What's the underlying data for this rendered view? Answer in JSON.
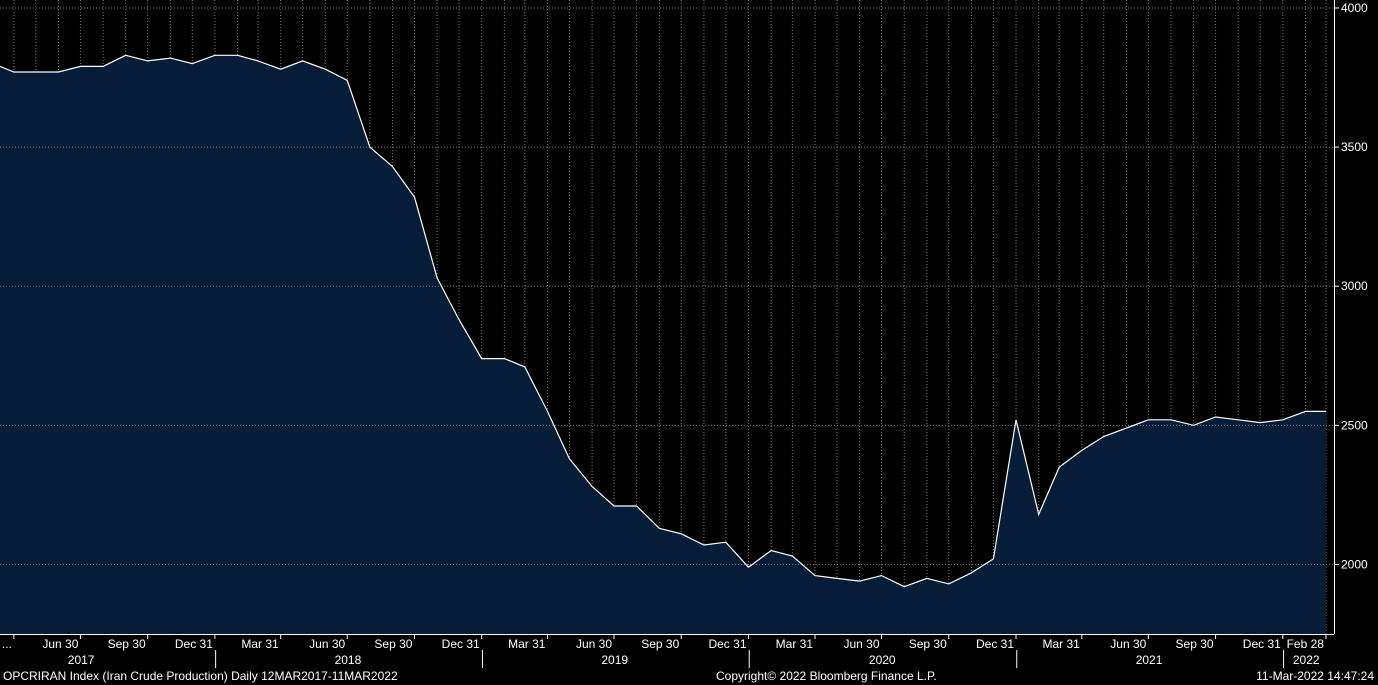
{
  "footer": {
    "left": "OPCRIRAN Index (Iran Crude Production)  Daily 12MAR2017-11MAR2022",
    "center": "Copyright© 2022 Bloomberg Finance L.P.",
    "right": "11-Mar-2022 14:47:24"
  },
  "colors": {
    "background": "#000000",
    "area_fill": "#061d3a",
    "line": "#ffffff",
    "grid": "#7a7a7a"
  },
  "chart_data": {
    "type": "area",
    "title": "",
    "xlabel": "",
    "ylabel": "",
    "ylim": [
      1750,
      4000
    ],
    "xlim": [
      "2017-03-12",
      "2022-03-11"
    ],
    "yticks": [
      2000,
      2500,
      3000,
      3500,
      4000
    ],
    "grid": true,
    "legend": "none",
    "x_tick_labels": [
      {
        "date": "2017-03-31",
        "label": "..."
      },
      {
        "date": "2017-06-30",
        "label": "Jun 30"
      },
      {
        "date": "2017-09-30",
        "label": "Sep 30"
      },
      {
        "date": "2017-12-31",
        "label": "Dec 31"
      },
      {
        "date": "2018-03-31",
        "label": "Mar 31"
      },
      {
        "date": "2018-06-30",
        "label": "Jun 30"
      },
      {
        "date": "2018-09-30",
        "label": "Sep 30"
      },
      {
        "date": "2018-12-31",
        "label": "Dec 31"
      },
      {
        "date": "2019-03-31",
        "label": "Mar 31"
      },
      {
        "date": "2019-06-30",
        "label": "Jun 30"
      },
      {
        "date": "2019-09-30",
        "label": "Sep 30"
      },
      {
        "date": "2019-12-31",
        "label": "Dec 31"
      },
      {
        "date": "2020-03-31",
        "label": "Mar 31"
      },
      {
        "date": "2020-06-30",
        "label": "Jun 30"
      },
      {
        "date": "2020-09-30",
        "label": "Sep 30"
      },
      {
        "date": "2020-12-31",
        "label": "Dec 31"
      },
      {
        "date": "2021-03-31",
        "label": "Mar 31"
      },
      {
        "date": "2021-06-30",
        "label": "Jun 30"
      },
      {
        "date": "2021-09-30",
        "label": "Sep 30"
      },
      {
        "date": "2021-12-31",
        "label": "Dec 31"
      },
      {
        "date": "2022-02-28",
        "label": "Feb 28"
      }
    ],
    "year_labels": [
      {
        "date": "2017-07-01",
        "label": "2017"
      },
      {
        "date": "2018-07-01",
        "label": "2018"
      },
      {
        "date": "2019-07-01",
        "label": "2019"
      },
      {
        "date": "2020-07-01",
        "label": "2020"
      },
      {
        "date": "2021-07-01",
        "label": "2021"
      },
      {
        "date": "2022-02-01",
        "label": "2022"
      }
    ],
    "year_boundaries": [
      "2018-01-01",
      "2019-01-01",
      "2020-01-01",
      "2021-01-01",
      "2022-01-01"
    ],
    "series": [
      {
        "x": [
          "2017-03-12",
          "2017-03-31",
          "2017-04-30",
          "2017-05-31",
          "2017-06-30",
          "2017-07-31",
          "2017-08-31",
          "2017-09-30",
          "2017-10-31",
          "2017-11-30",
          "2017-12-31",
          "2018-01-31",
          "2018-02-28",
          "2018-03-31",
          "2018-04-30",
          "2018-05-31",
          "2018-06-30",
          "2018-07-31",
          "2018-08-31",
          "2018-09-30",
          "2018-10-31",
          "2018-11-30",
          "2018-12-31",
          "2019-01-31",
          "2019-02-28",
          "2019-03-31",
          "2019-04-30",
          "2019-05-31",
          "2019-06-30",
          "2019-07-31",
          "2019-08-31",
          "2019-09-30",
          "2019-10-31",
          "2019-11-30",
          "2019-12-31",
          "2020-01-31",
          "2020-02-29",
          "2020-03-31",
          "2020-04-30",
          "2020-05-31",
          "2020-06-30",
          "2020-07-31",
          "2020-08-31",
          "2020-09-30",
          "2020-10-31",
          "2020-11-30",
          "2020-12-31",
          "2021-01-31",
          "2021-02-28",
          "2021-03-31",
          "2021-04-30",
          "2021-05-31",
          "2021-06-30",
          "2021-07-31",
          "2021-08-31",
          "2021-09-30",
          "2021-10-31",
          "2021-11-30",
          "2021-12-31",
          "2022-01-31",
          "2022-02-28"
        ],
        "values": [
          3790,
          3770,
          3770,
          3770,
          3790,
          3790,
          3830,
          3810,
          3820,
          3800,
          3830,
          3830,
          3810,
          3780,
          3810,
          3780,
          3740,
          3500,
          3430,
          3320,
          3030,
          2880,
          2740,
          2740,
          2710,
          2550,
          2380,
          2280,
          2210,
          2210,
          2130,
          2110,
          2070,
          2080,
          1990,
          2050,
          2030,
          1960,
          1950,
          1940,
          1960,
          1920,
          1950,
          1930,
          1970,
          2020,
          2520,
          2180,
          2350,
          2410,
          2460,
          2490,
          2520,
          2520,
          2500,
          2530,
          2520,
          2510,
          2520,
          2550,
          2550
        ]
      }
    ]
  }
}
